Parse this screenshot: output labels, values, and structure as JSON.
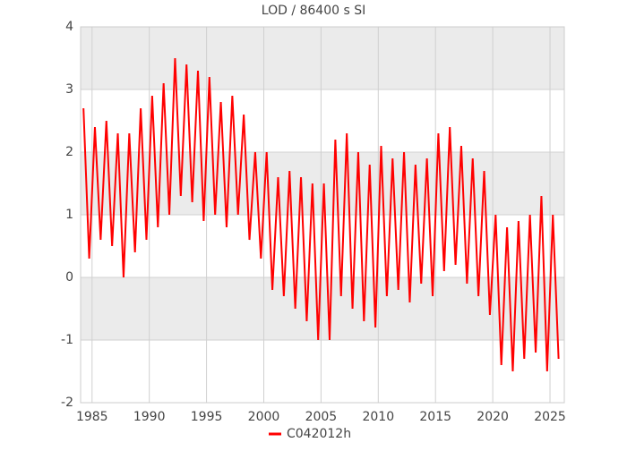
{
  "chart_data": {
    "type": "line",
    "title": "LOD / 86400 s SI",
    "x": [
      1984.25,
      1984.75,
      1985.25,
      1985.75,
      1986.25,
      1986.75,
      1987.25,
      1987.75,
      1988.25,
      1988.75,
      1989.25,
      1989.75,
      1990.25,
      1990.75,
      1991.25,
      1991.75,
      1992.25,
      1992.75,
      1993.25,
      1993.75,
      1994.25,
      1994.75,
      1995.25,
      1995.75,
      1996.25,
      1996.75,
      1997.25,
      1997.75,
      1998.25,
      1998.75,
      1999.25,
      1999.75,
      2000.25,
      2000.75,
      2001.25,
      2001.75,
      2002.25,
      2002.75,
      2003.25,
      2003.75,
      2004.25,
      2004.75,
      2005.25,
      2005.75,
      2006.25,
      2006.75,
      2007.25,
      2007.75,
      2008.25,
      2008.75,
      2009.25,
      2009.75,
      2010.25,
      2010.75,
      2011.25,
      2011.75,
      2012.25,
      2012.75,
      2013.25,
      2013.75,
      2014.25,
      2014.75,
      2015.25,
      2015.75,
      2016.25,
      2016.75,
      2017.25,
      2017.75,
      2018.25,
      2018.75,
      2019.25,
      2019.75,
      2020.25,
      2020.75,
      2021.25,
      2021.75,
      2022.25,
      2022.75,
      2023.25,
      2023.75,
      2024.25,
      2024.75,
      2025.25,
      2025.75
    ],
    "series": [
      {
        "name": "C042012h",
        "color": "#ff0000",
        "values": [
          2.7,
          0.3,
          2.4,
          0.6,
          2.5,
          0.5,
          2.3,
          0.0,
          2.3,
          0.4,
          2.7,
          0.6,
          2.9,
          0.8,
          3.1,
          1.0,
          3.5,
          1.3,
          3.4,
          1.2,
          3.3,
          0.9,
          3.2,
          1.0,
          2.8,
          0.8,
          2.9,
          1.0,
          2.6,
          0.6,
          2.0,
          0.3,
          2.0,
          -0.2,
          1.6,
          -0.3,
          1.7,
          -0.5,
          1.6,
          -0.7,
          1.5,
          -1.0,
          1.5,
          -1.0,
          2.2,
          -0.3,
          2.3,
          -0.5,
          2.0,
          -0.7,
          1.8,
          -0.8,
          2.1,
          -0.3,
          1.9,
          -0.2,
          2.0,
          -0.4,
          1.8,
          -0.1,
          1.9,
          -0.3,
          2.3,
          0.1,
          2.4,
          0.2,
          2.1,
          -0.1,
          1.9,
          -0.3,
          1.7,
          -0.6,
          1.0,
          -1.4,
          0.8,
          -1.5,
          0.9,
          -1.3,
          1.0,
          -1.2,
          1.3,
          -1.5,
          1.0,
          -1.3
        ]
      }
    ],
    "xlim": [
      1984,
      2026.25
    ],
    "xticks": [
      1985,
      1990,
      1995,
      2000,
      2005,
      2010,
      2015,
      2020,
      2025
    ],
    "ylim": [
      -2,
      4
    ],
    "yticks": [
      -2,
      -1,
      0,
      1,
      2,
      3,
      4
    ],
    "grid": true,
    "bands": true,
    "legend": "bottom"
  }
}
